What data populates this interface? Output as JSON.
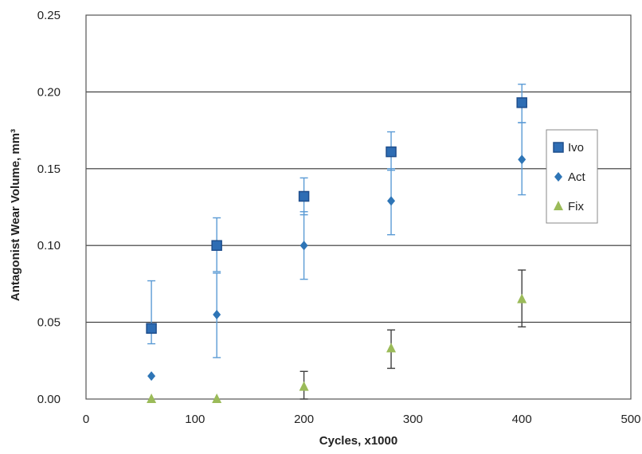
{
  "chart_data": {
    "type": "scatter",
    "title": "",
    "xlabel": "Cycles, x1000",
    "ylabel": "Antagonist Wear Volume, mm³",
    "xlim": [
      0,
      500
    ],
    "ylim": [
      0,
      0.25
    ],
    "x_ticks": [
      "0",
      "100",
      "200",
      "300",
      "400",
      "500"
    ],
    "y_ticks": [
      "0.00",
      "0.05",
      "0.10",
      "0.15",
      "0.20",
      "0.25"
    ],
    "grid": "horizontal",
    "legend_position": "right",
    "series": [
      {
        "name": "Ivo",
        "marker": "square",
        "color": "#2e6db4",
        "error_color": "#5b9bd5",
        "x": [
          60,
          120,
          200,
          280,
          400
        ],
        "y": [
          0.046,
          0.1,
          0.132,
          0.161,
          0.193
        ],
        "err_low": [
          0.036,
          0.083,
          0.12,
          0.149,
          0.18
        ],
        "err_high": [
          0.077,
          0.118,
          0.144,
          0.174,
          0.205
        ]
      },
      {
        "name": "Act",
        "marker": "diamond",
        "color": "#2e75b6",
        "error_color": "#5b9bd5",
        "x": [
          60,
          120,
          200,
          280,
          400
        ],
        "y": [
          0.015,
          0.055,
          0.1,
          0.129,
          0.156
        ],
        "err_low": [
          0.015,
          0.027,
          0.078,
          0.107,
          0.133
        ],
        "err_high": [
          0.015,
          0.082,
          0.122,
          0.15,
          0.18
        ]
      },
      {
        "name": "Fix",
        "marker": "triangle",
        "color": "#9bbb59",
        "error_color": "#404040",
        "x": [
          60,
          120,
          200,
          280,
          400
        ],
        "y": [
          0.0,
          0.0,
          0.008,
          0.033,
          0.065
        ],
        "err_low": [
          0.0,
          0.0,
          0.0,
          0.02,
          0.047
        ],
        "err_high": [
          0.0,
          0.0,
          0.018,
          0.045,
          0.084
        ]
      }
    ]
  }
}
